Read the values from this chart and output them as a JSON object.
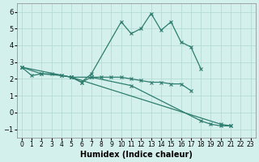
{
  "xlabel": "Humidex (Indice chaleur)",
  "x": [
    0,
    1,
    2,
    3,
    4,
    5,
    6,
    7,
    8,
    9,
    10,
    11,
    12,
    13,
    14,
    15,
    16,
    17,
    18,
    19,
    20,
    21,
    22,
    23
  ],
  "line1": [
    2.7,
    2.2,
    2.3,
    2.3,
    2.2,
    2.1,
    1.8,
    2.3,
    null,
    null,
    5.4,
    4.7,
    5.0,
    5.9,
    4.9,
    5.4,
    4.2,
    3.9,
    2.6,
    null,
    null,
    null,
    null,
    null
  ],
  "line2": [
    2.7,
    null,
    2.3,
    null,
    2.2,
    2.1,
    1.8,
    2.1,
    2.1,
    2.1,
    2.1,
    2.0,
    1.9,
    1.8,
    1.8,
    1.7,
    1.7,
    1.3,
    null,
    null,
    null,
    null,
    null,
    null
  ],
  "line3": [
    2.7,
    null,
    null,
    null,
    null,
    2.1,
    null,
    2.1,
    null,
    null,
    null,
    1.6,
    null,
    null,
    null,
    null,
    null,
    null,
    -0.5,
    -0.7,
    -0.8,
    -0.8,
    null,
    null
  ],
  "line4": [
    null,
    null,
    null,
    null,
    null,
    2.1,
    null,
    null,
    null,
    null,
    null,
    null,
    null,
    null,
    null,
    null,
    null,
    null,
    null,
    null,
    -0.7,
    -0.8,
    null,
    null
  ],
  "color": "#2e7d6e",
  "bg_color": "#d4f0ec",
  "grid_color": "#b0d8d2",
  "ylim": [
    -1.5,
    6.5
  ],
  "yticks": [
    -1,
    0,
    1,
    2,
    3,
    4,
    5,
    6
  ]
}
